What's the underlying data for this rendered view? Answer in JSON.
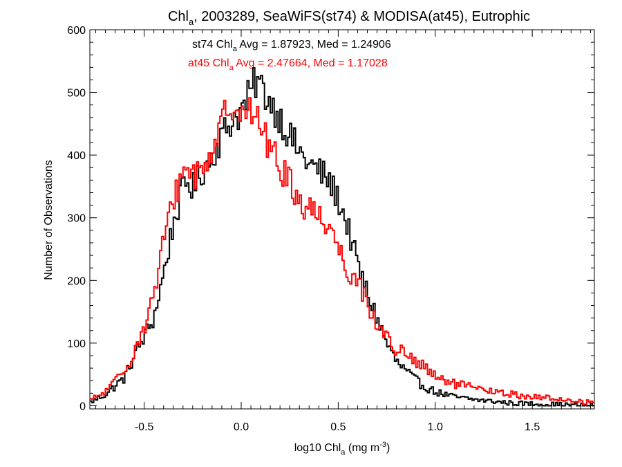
{
  "chart_data": {
    "type": "line",
    "title": {
      "prefix": "Chl",
      "sub": "a",
      "rest": ", 2003289, SeaWiFS(st74) & MODISA(at45), Eutrophic"
    },
    "xlabel": {
      "prefix": "log10 Chl",
      "sub": "a",
      "mid": " (mg m",
      "sup": "-3",
      "end": ")"
    },
    "ylabel": "Number of Observations",
    "xlim": [
      -0.78,
      1.82
    ],
    "ylim": [
      -5,
      600
    ],
    "x_ticks": [
      {
        "value": -0.5,
        "label": "-0.5"
      },
      {
        "value": 0.0,
        "label": "0.0"
      },
      {
        "value": 0.5,
        "label": "0.5"
      },
      {
        "value": 1.0,
        "label": "1.0"
      },
      {
        "value": 1.5,
        "label": "1.5"
      }
    ],
    "y_ticks": [
      {
        "value": 0,
        "label": "0"
      },
      {
        "value": 100,
        "label": "100"
      },
      {
        "value": 200,
        "label": "200"
      },
      {
        "value": 300,
        "label": "300"
      },
      {
        "value": 400,
        "label": "400"
      },
      {
        "value": 500,
        "label": "500"
      },
      {
        "value": 600,
        "label": "600"
      }
    ],
    "bin_width": 0.01,
    "series": [
      {
        "name": "st74",
        "color": "#000000",
        "annotation": {
          "prefix": "st74 Chl",
          "sub": "a",
          "rest": " Avg = 1.87923, Med = 1.24906"
        },
        "anchors": [
          [
            -0.78,
            5
          ],
          [
            -0.7,
            18
          ],
          [
            -0.6,
            45
          ],
          [
            -0.55,
            80
          ],
          [
            -0.5,
            110
          ],
          [
            -0.45,
            140
          ],
          [
            -0.4,
            210
          ],
          [
            -0.35,
            290
          ],
          [
            -0.3,
            345
          ],
          [
            -0.27,
            360
          ],
          [
            -0.25,
            345
          ],
          [
            -0.2,
            375
          ],
          [
            -0.15,
            400
          ],
          [
            -0.1,
            430
          ],
          [
            -0.05,
            455
          ],
          [
            0.0,
            470
          ],
          [
            0.05,
            500
          ],
          [
            0.08,
            520
          ],
          [
            0.1,
            510
          ],
          [
            0.15,
            485
          ],
          [
            0.2,
            460
          ],
          [
            0.25,
            430
          ],
          [
            0.3,
            405
          ],
          [
            0.35,
            385
          ],
          [
            0.4,
            375
          ],
          [
            0.45,
            360
          ],
          [
            0.5,
            330
          ],
          [
            0.55,
            285
          ],
          [
            0.6,
            225
          ],
          [
            0.65,
            180
          ],
          [
            0.7,
            140
          ],
          [
            0.75,
            100
          ],
          [
            0.8,
            70
          ],
          [
            0.85,
            55
          ],
          [
            0.9,
            40
          ],
          [
            0.95,
            30
          ],
          [
            1.0,
            22
          ],
          [
            1.1,
            14
          ],
          [
            1.2,
            10
          ],
          [
            1.3,
            7
          ],
          [
            1.4,
            4
          ],
          [
            1.5,
            3
          ],
          [
            1.6,
            2
          ],
          [
            1.7,
            1
          ],
          [
            1.82,
            0
          ]
        ]
      },
      {
        "name": "at45",
        "color": "#ff0000",
        "annotation": {
          "prefix": "at45 Chl",
          "sub": "a",
          "rest": " Avg = 2.47664, Med = 1.17028"
        },
        "anchors": [
          [
            -0.78,
            8
          ],
          [
            -0.7,
            22
          ],
          [
            -0.6,
            55
          ],
          [
            -0.55,
            90
          ],
          [
            -0.5,
            125
          ],
          [
            -0.45,
            175
          ],
          [
            -0.4,
            260
          ],
          [
            -0.35,
            330
          ],
          [
            -0.3,
            370
          ],
          [
            -0.27,
            385
          ],
          [
            -0.25,
            370
          ],
          [
            -0.2,
            375
          ],
          [
            -0.15,
            410
          ],
          [
            -0.1,
            450
          ],
          [
            -0.05,
            485
          ],
          [
            0.0,
            480
          ],
          [
            0.05,
            465
          ],
          [
            0.1,
            450
          ],
          [
            0.15,
            410
          ],
          [
            0.2,
            380
          ],
          [
            0.25,
            360
          ],
          [
            0.3,
            325
          ],
          [
            0.35,
            315
          ],
          [
            0.4,
            305
          ],
          [
            0.45,
            290
          ],
          [
            0.5,
            255
          ],
          [
            0.55,
            215
          ],
          [
            0.6,
            200
          ],
          [
            0.65,
            165
          ],
          [
            0.7,
            130
          ],
          [
            0.75,
            110
          ],
          [
            0.8,
            90
          ],
          [
            0.85,
            80
          ],
          [
            0.9,
            70
          ],
          [
            0.95,
            60
          ],
          [
            1.0,
            45
          ],
          [
            1.1,
            35
          ],
          [
            1.2,
            28
          ],
          [
            1.3,
            22
          ],
          [
            1.4,
            18
          ],
          [
            1.5,
            14
          ],
          [
            1.6,
            12
          ],
          [
            1.7,
            8
          ],
          [
            1.82,
            5
          ]
        ]
      }
    ]
  }
}
